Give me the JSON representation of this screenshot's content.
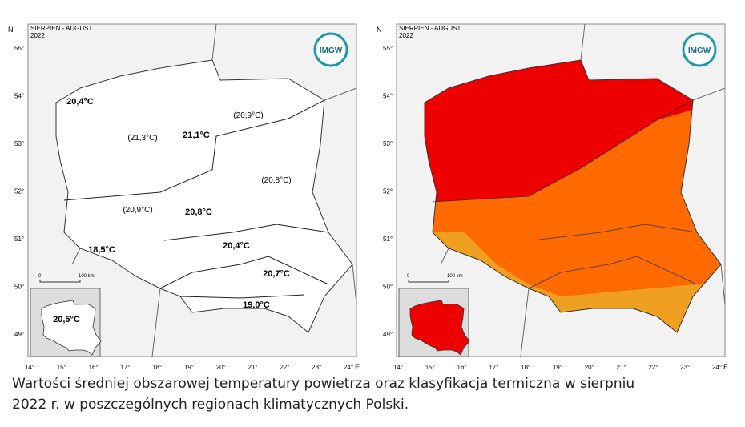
{
  "maps": [
    {
      "header": "SIERPIEN - AUGUST",
      "year": "2022",
      "north": "N",
      "east": "E",
      "logo": "IMGW",
      "lat_labels": [
        "55°",
        "54°",
        "53°",
        "52°",
        "51°",
        "50°",
        "49°"
      ],
      "lon_labels": [
        "14°",
        "15°",
        "16°",
        "17°",
        "18°",
        "19°",
        "20°",
        "21°",
        "22°",
        "23°",
        "24°"
      ],
      "scale": [
        "0",
        "100 km"
      ],
      "regions": [
        "20,4°C",
        "(20,9°C)",
        "(21,3°C)",
        "21,1°C",
        "(20,8°C)",
        "(20,9°C)",
        "20,8°C",
        "20,4°C",
        "18,5°C",
        "20,7°C",
        "19,0°C",
        "20,5°C"
      ]
    },
    {
      "header": "SIERPIEN - AUGUST",
      "year": "2022",
      "north": "N",
      "east": "E",
      "logo": "IMGW",
      "lat_labels": [
        "55°",
        "54°",
        "53°",
        "52°",
        "51°",
        "50°",
        "49°"
      ],
      "lon_labels": [
        "14°",
        "15°",
        "16°",
        "17°",
        "18°",
        "19°",
        "20°",
        "21°",
        "22°",
        "23°",
        "24°"
      ],
      "scale": [
        "0",
        "100 km"
      ]
    }
  ],
  "caption": [
    "Wartości średniej obszarowej temperatury powietrza oraz klasyfikacja termiczna w sierpniu",
    "2022 r. w poszczególnych regionach klimatycznych Polski."
  ]
}
